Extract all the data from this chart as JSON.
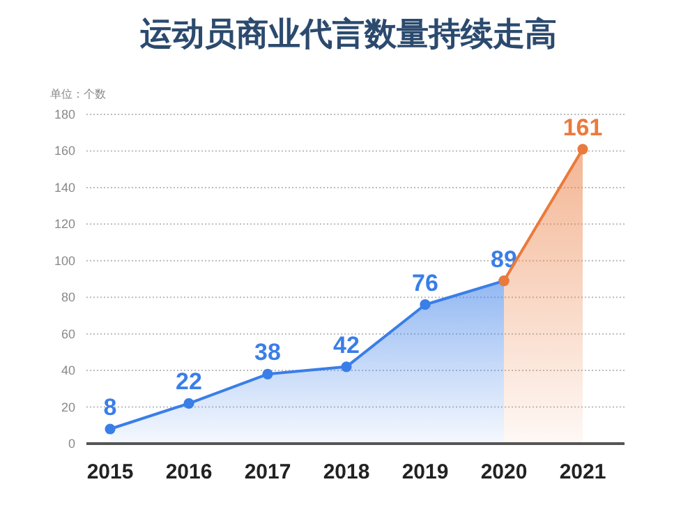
{
  "chart_data": {
    "type": "area",
    "title": "运动员商业代言数量持续走高",
    "ylabel": "单位：个数",
    "categories": [
      "2015",
      "2016",
      "2017",
      "2018",
      "2019",
      "2020",
      "2021"
    ],
    "series": [
      {
        "color": "#3a7ee8",
        "values": [
          8,
          22,
          38,
          42,
          76,
          89,
          null
        ],
        "value_labels": [
          "8",
          "22",
          "38",
          "42",
          "76",
          "89",
          null
        ]
      },
      {
        "color": "#ea7a3c",
        "values": [
          null,
          null,
          null,
          null,
          null,
          89,
          161
        ],
        "value_labels": [
          null,
          null,
          null,
          null,
          null,
          null,
          "161"
        ]
      }
    ],
    "ylim": [
      0,
      180
    ],
    "yticks": [
      0,
      20,
      40,
      60,
      80,
      100,
      120,
      140,
      160,
      180
    ],
    "grid": "y",
    "marker": "circle"
  }
}
